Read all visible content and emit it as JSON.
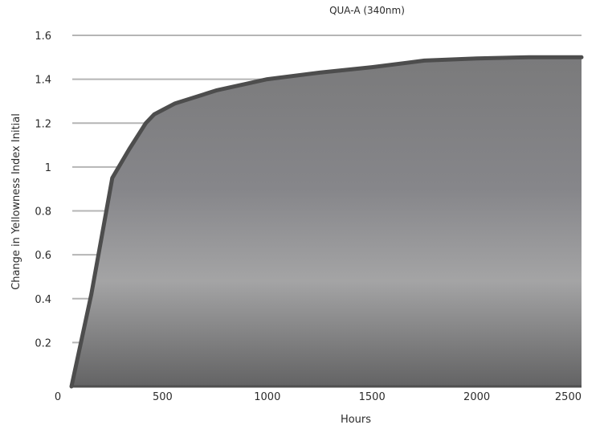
{
  "chart_data": {
    "type": "area",
    "title": "QUA-A (340nm)",
    "xlabel": "Hours",
    "ylabel": "Change in Yellowness Index Initial",
    "xlim": [
      0,
      2500
    ],
    "ylim": [
      0,
      1.6
    ],
    "x_ticks": [
      {
        "value": 0,
        "label": "0"
      },
      {
        "value": 500,
        "label": "500"
      },
      {
        "value": 1000,
        "label": "1000"
      },
      {
        "value": 1500,
        "label": "1500"
      },
      {
        "value": 2000,
        "label": "2000"
      },
      {
        "value": 2500,
        "label": "2500"
      }
    ],
    "y_ticks": [
      {
        "value": 0.2,
        "label": "0.2"
      },
      {
        "value": 0.4,
        "label": "0.4"
      },
      {
        "value": 0.6,
        "label": "0.6"
      },
      {
        "value": 0.8,
        "label": "0.8"
      },
      {
        "value": 1,
        "label": "1"
      },
      {
        "value": 1.2,
        "label": "1.2"
      },
      {
        "value": 1.4,
        "label": "1.4"
      },
      {
        "value": 1.6,
        "label": "1.6"
      }
    ],
    "grid": "horizontal lines at y ticks",
    "series": [
      {
        "x": [
          65,
          160,
          260,
          340,
          420,
          460,
          500,
          560,
          760,
          1000,
          1250,
          1500,
          1750,
          2000,
          2250,
          2500
        ],
        "values": [
          0.0,
          0.42,
          0.95,
          1.08,
          1.2,
          1.24,
          1.26,
          1.29,
          1.35,
          1.4,
          1.43,
          1.455,
          1.485,
          1.495,
          1.5,
          1.5
        ]
      }
    ],
    "colors": {
      "line": "#4d4d4d",
      "fill_dark": "#6e6e6f",
      "fill_light": "#a3a3a4",
      "grid": "#b5b5b5"
    }
  }
}
